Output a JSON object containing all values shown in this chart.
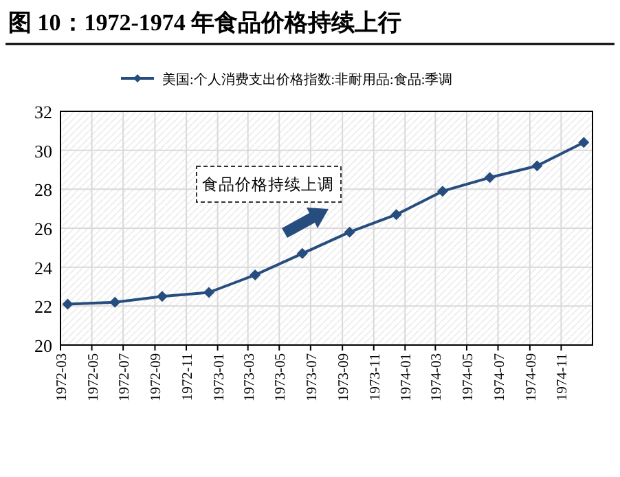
{
  "chart_data": {
    "type": "line",
    "title": "图 10：1972-1974 年食品价格持续上行",
    "x": [
      "1972-03-15",
      "1972-06-15",
      "1972-09-15",
      "1972-12-15",
      "1973-03-15",
      "1973-06-15",
      "1973-09-15",
      "1973-12-15",
      "1974-03-15",
      "1974-06-15",
      "1974-09-15",
      "1974-12-15"
    ],
    "series": [
      {
        "name": "美国:个人消费支出价格指数:非耐用品:食品:季调",
        "color": "#264d7e",
        "values": [
          22.1,
          22.2,
          22.5,
          22.7,
          23.6,
          24.7,
          25.8,
          26.7,
          27.9,
          28.6,
          29.2,
          30.4
        ]
      }
    ],
    "xlim": [
      "1972-03-01",
      "1975-01-01"
    ],
    "xticks": [
      {
        "value": "1972-03-01",
        "label": "1972-03"
      },
      {
        "value": "1972-05-01",
        "label": "1972-05"
      },
      {
        "value": "1972-07-01",
        "label": "1972-07"
      },
      {
        "value": "1972-09-01",
        "label": "1972-09"
      },
      {
        "value": "1972-11-01",
        "label": "1972-11"
      },
      {
        "value": "1973-01-01",
        "label": "1973-01"
      },
      {
        "value": "1973-03-01",
        "label": "1973-03"
      },
      {
        "value": "1973-05-01",
        "label": "1973-05"
      },
      {
        "value": "1973-07-01",
        "label": "1973-07"
      },
      {
        "value": "1973-09-01",
        "label": "1973-09"
      },
      {
        "value": "1973-11-01",
        "label": "1973-11"
      },
      {
        "value": "1974-01-01",
        "label": "1974-01"
      },
      {
        "value": "1974-03-01",
        "label": "1974-03"
      },
      {
        "value": "1974-05-01",
        "label": "1974-05"
      },
      {
        "value": "1974-07-01",
        "label": "1974-07"
      },
      {
        "value": "1974-09-01",
        "label": "1974-09"
      },
      {
        "value": "1974-11-01",
        "label": "1974-11"
      }
    ],
    "ylim": [
      20,
      32
    ],
    "yticks": [
      20,
      22,
      24,
      26,
      28,
      30,
      32
    ],
    "grid": true,
    "legend": "top",
    "marker": "diamond",
    "line_style": "solid",
    "annotations": [
      "食品价格持续上调"
    ]
  }
}
